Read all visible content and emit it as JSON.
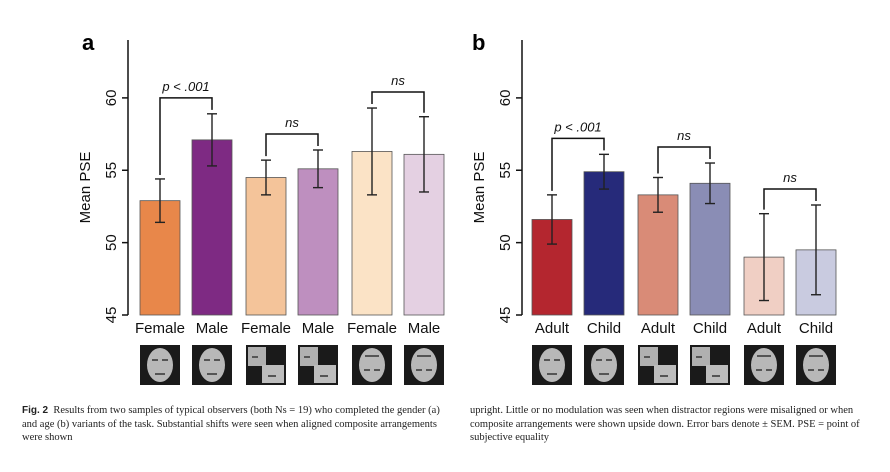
{
  "chart_data": [
    {
      "type": "bar",
      "panel": "a",
      "ylabel": "Mean PSE",
      "ylim": [
        45,
        64
      ],
      "yticks": [
        45,
        50,
        55,
        60
      ],
      "categories": [
        "Female",
        "Male",
        "Female",
        "Male",
        "Female",
        "Male"
      ],
      "values": [
        52.9,
        57.1,
        54.5,
        55.1,
        56.3,
        56.1
      ],
      "errors": [
        1.5,
        1.8,
        1.2,
        1.3,
        3.0,
        2.6
      ],
      "colors": [
        "#E8874A",
        "#7E2A83",
        "#F4C49A",
        "#BE8FBF",
        "#FBE3C6",
        "#E4D0E2"
      ],
      "comparisons": [
        {
          "pair": [
            0,
            1
          ],
          "label": "p < .001"
        },
        {
          "pair": [
            2,
            3
          ],
          "label": "ns"
        },
        {
          "pair": [
            4,
            5
          ],
          "label": "ns"
        }
      ]
    },
    {
      "type": "bar",
      "panel": "b",
      "ylabel": "Mean PSE",
      "ylim": [
        45,
        64
      ],
      "yticks": [
        45,
        50,
        55,
        60
      ],
      "categories": [
        "Adult",
        "Child",
        "Adult",
        "Child",
        "Adult",
        "Child"
      ],
      "values": [
        51.6,
        54.9,
        53.3,
        54.1,
        49.0,
        49.5
      ],
      "errors": [
        1.7,
        1.2,
        1.2,
        1.4,
        3.0,
        3.1
      ],
      "colors": [
        "#B4262F",
        "#262A7A",
        "#D98B77",
        "#8A8DB5",
        "#F0CFC4",
        "#C9CBE0"
      ],
      "comparisons": [
        {
          "pair": [
            0,
            1
          ],
          "label": "p < .001"
        },
        {
          "pair": [
            2,
            3
          ],
          "label": "ns"
        },
        {
          "pair": [
            4,
            5
          ],
          "label": "ns"
        }
      ]
    }
  ],
  "caption": {
    "fig_label": "Fig. 2",
    "left_text": "Results from two samples of typical observers (both Ns = 19) who completed the gender (a) and age (b) variants of the task. Substantial shifts were seen when aligned composite arrangements were shown",
    "right_text": "upright. Little or no modulation was seen when distractor regions were misaligned or when composite arrangements were shown upside down. Error bars denote ± SEM. PSE = point of subjective equality"
  }
}
